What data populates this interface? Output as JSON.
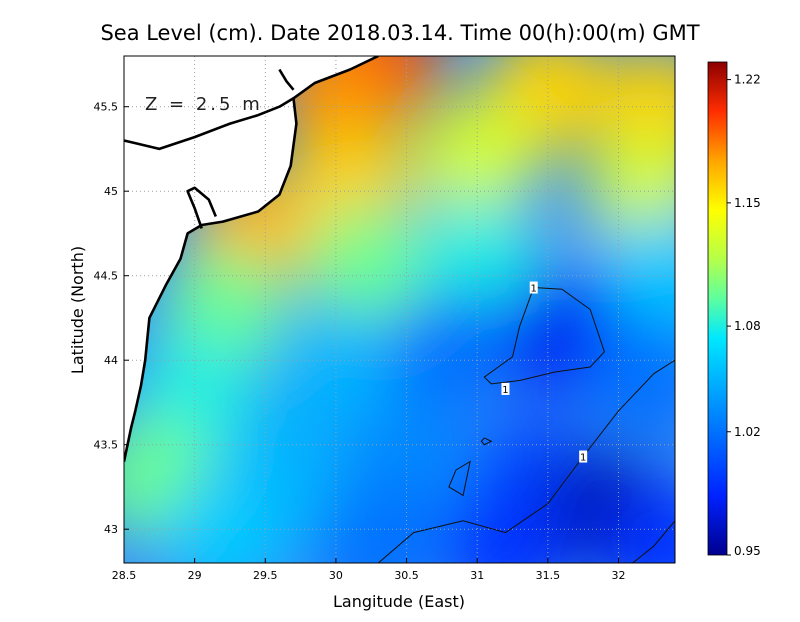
{
  "chart_data": {
    "type": "heatmap",
    "title": "Sea Level (cm). Date 2018.03.14. Time 00(h):00(m) GMT",
    "xlabel": "Langitude (East)",
    "ylabel": "Latitude (North)",
    "annotation": "Z = 2.5 m",
    "xlim": [
      28.5,
      32.4
    ],
    "ylim": [
      42.8,
      45.8
    ],
    "x_ticks": [
      28.5,
      29,
      29.5,
      30,
      30.5,
      31,
      31.5,
      32
    ],
    "x_tick_labels": [
      "28.5",
      "29",
      "29.5",
      "30",
      "30.5",
      "31",
      "31.5",
      "32"
    ],
    "y_ticks": [
      43,
      43.5,
      44,
      44.5,
      45,
      45.5
    ],
    "y_tick_labels": [
      "43",
      "43.5",
      "44",
      "44.5",
      "45",
      "45.5"
    ],
    "grid": true,
    "colorbar": {
      "min": 0.95,
      "max": 1.23,
      "ticks": [
        0.95,
        1.02,
        1.08,
        1.15,
        1.22
      ],
      "tick_labels": [
        "0.95",
        "1.02",
        "1.08",
        "1.15",
        "1.22"
      ]
    },
    "field_samples": [
      {
        "lon": 30.3,
        "lat": 45.75,
        "value": 1.2
      },
      {
        "lon": 30.0,
        "lat": 45.6,
        "value": 1.18
      },
      {
        "lon": 31.5,
        "lat": 45.6,
        "value": 1.16
      },
      {
        "lon": 32.3,
        "lat": 45.5,
        "value": 1.16
      },
      {
        "lon": 29.4,
        "lat": 44.75,
        "value": 1.17
      },
      {
        "lon": 30.1,
        "lat": 45.05,
        "value": 1.16
      },
      {
        "lon": 31.0,
        "lat": 45.2,
        "value": 1.13
      },
      {
        "lon": 32.2,
        "lat": 45.0,
        "value": 1.13
      },
      {
        "lon": 29.2,
        "lat": 44.3,
        "value": 1.1
      },
      {
        "lon": 30.2,
        "lat": 44.55,
        "value": 1.1
      },
      {
        "lon": 31.0,
        "lat": 44.6,
        "value": 1.08
      },
      {
        "lon": 32.3,
        "lat": 44.5,
        "value": 1.06
      },
      {
        "lon": 29.0,
        "lat": 43.8,
        "value": 1.08
      },
      {
        "lon": 30.0,
        "lat": 43.95,
        "value": 1.05
      },
      {
        "lon": 30.8,
        "lat": 44.05,
        "value": 1.02
      },
      {
        "lon": 31.6,
        "lat": 44.15,
        "value": 0.98
      },
      {
        "lon": 32.2,
        "lat": 43.9,
        "value": 1.02
      },
      {
        "lon": 28.7,
        "lat": 43.3,
        "value": 1.1
      },
      {
        "lon": 29.6,
        "lat": 43.3,
        "value": 1.05
      },
      {
        "lon": 30.5,
        "lat": 43.4,
        "value": 1.03
      },
      {
        "lon": 31.4,
        "lat": 43.3,
        "value": 1.0
      },
      {
        "lon": 31.9,
        "lat": 43.1,
        "value": 0.96
      },
      {
        "lon": 29.2,
        "lat": 42.95,
        "value": 1.06
      },
      {
        "lon": 30.3,
        "lat": 42.9,
        "value": 1.02
      },
      {
        "lon": 31.2,
        "lat": 42.9,
        "value": 0.99
      },
      {
        "lon": 32.35,
        "lat": 42.9,
        "value": 0.99
      }
    ],
    "contours": [
      {
        "level": "1",
        "label_at": [
          31.4,
          44.43
        ],
        "points": [
          [
            31.4,
            44.43
          ],
          [
            31.6,
            44.42
          ],
          [
            31.8,
            44.3
          ],
          [
            31.9,
            44.05
          ],
          [
            31.8,
            43.96
          ],
          [
            31.55,
            43.93
          ],
          [
            31.3,
            43.88
          ],
          [
            31.1,
            43.86
          ],
          [
            31.05,
            43.9
          ],
          [
            31.25,
            44.02
          ],
          [
            31.3,
            44.2
          ],
          [
            31.4,
            44.43
          ]
        ]
      },
      {
        "level": "1",
        "label_at": [
          31.2,
          43.83
        ],
        "points": []
      },
      {
        "level": "1",
        "label_at": [
          31.75,
          43.43
        ],
        "points": [
          [
            30.3,
            42.8
          ],
          [
            30.55,
            42.98
          ],
          [
            30.9,
            43.05
          ],
          [
            31.2,
            42.98
          ],
          [
            31.5,
            43.15
          ],
          [
            31.75,
            43.43
          ],
          [
            32.0,
            43.7
          ],
          [
            32.25,
            43.92
          ],
          [
            32.4,
            44.0
          ]
        ]
      },
      {
        "level": "1",
        "label_at": null,
        "points": [
          [
            32.1,
            42.8
          ],
          [
            32.25,
            42.9
          ],
          [
            32.4,
            43.05
          ]
        ]
      },
      {
        "level": "1",
        "label_at": null,
        "points": [
          [
            30.85,
            43.35
          ],
          [
            30.95,
            43.4
          ],
          [
            30.9,
            43.2
          ],
          [
            30.8,
            43.25
          ],
          [
            30.85,
            43.35
          ]
        ]
      },
      {
        "level": "1",
        "label_at": null,
        "points": [
          [
            31.05,
            43.54
          ],
          [
            31.1,
            43.52
          ],
          [
            31.05,
            43.5
          ],
          [
            31.03,
            43.52
          ],
          [
            31.05,
            43.54
          ]
        ]
      }
    ],
    "coastline": [
      [
        [
          30.3,
          45.8
        ],
        [
          30.1,
          45.72
        ],
        [
          29.85,
          45.64
        ],
        [
          29.7,
          45.55
        ],
        [
          29.72,
          45.4
        ],
        [
          29.68,
          45.15
        ],
        [
          29.6,
          44.98
        ],
        [
          29.45,
          44.88
        ],
        [
          29.2,
          44.82
        ],
        [
          29.05,
          44.8
        ],
        [
          28.95,
          44.75
        ],
        [
          28.9,
          44.6
        ],
        [
          28.8,
          44.45
        ],
        [
          28.68,
          44.25
        ],
        [
          28.65,
          44.0
        ],
        [
          28.62,
          43.85
        ],
        [
          28.58,
          43.7
        ],
        [
          28.55,
          43.6
        ],
        [
          28.5,
          43.4
        ]
      ],
      [
        [
          28.5,
          45.3
        ],
        [
          28.75,
          45.25
        ],
        [
          29.0,
          45.32
        ],
        [
          29.25,
          45.4
        ],
        [
          29.45,
          45.45
        ],
        [
          29.6,
          45.5
        ],
        [
          29.7,
          45.55
        ]
      ],
      [
        [
          29.05,
          44.78
        ],
        [
          29.0,
          44.9
        ],
        [
          28.95,
          45.0
        ],
        [
          29.0,
          45.02
        ],
        [
          29.1,
          44.95
        ],
        [
          29.15,
          44.85
        ]
      ],
      [
        [
          29.6,
          45.72
        ],
        [
          29.65,
          45.65
        ],
        [
          29.7,
          45.6
        ]
      ]
    ],
    "land_polygon": [
      [
        28.5,
        45.8
      ],
      [
        30.3,
        45.8
      ],
      [
        30.1,
        45.72
      ],
      [
        29.85,
        45.64
      ],
      [
        29.7,
        45.55
      ],
      [
        29.72,
        45.4
      ],
      [
        29.68,
        45.15
      ],
      [
        29.6,
        44.98
      ],
      [
        29.45,
        44.88
      ],
      [
        29.2,
        44.82
      ],
      [
        29.05,
        44.8
      ],
      [
        28.95,
        44.75
      ],
      [
        28.9,
        44.6
      ],
      [
        28.8,
        44.45
      ],
      [
        28.68,
        44.25
      ],
      [
        28.65,
        44.0
      ],
      [
        28.62,
        43.85
      ],
      [
        28.58,
        43.7
      ],
      [
        28.55,
        43.6
      ],
      [
        28.5,
        43.4
      ]
    ]
  }
}
